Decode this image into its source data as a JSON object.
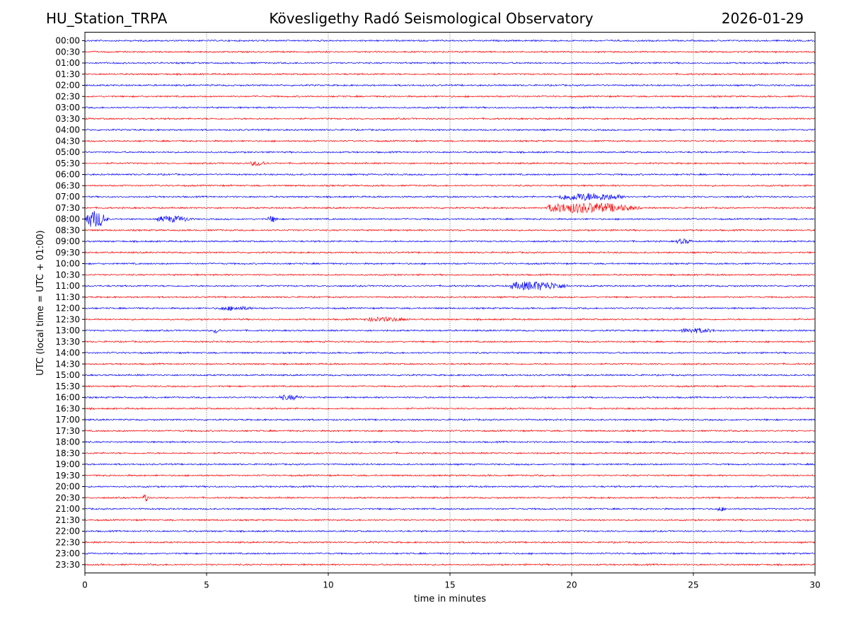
{
  "header": {
    "station": "HU_Station_TRPA",
    "observatory": "Kövesligethy Radó Seismological Observatory",
    "date": "2026-01-29"
  },
  "chart_data": {
    "type": "line",
    "title": "Kövesligethy Radó Seismological Observatory",
    "xlabel": "time in minutes",
    "ylabel": "UTC (local time = UTC + 01:00)",
    "xlim": [
      0,
      30
    ],
    "x_ticks": [
      0,
      5,
      10,
      15,
      20,
      25,
      30
    ],
    "grid": "vertical dotted at 5-minute ticks",
    "series_colors": [
      "#0000ff",
      "#ff0000"
    ],
    "row_labels": [
      "00:00",
      "00:30",
      "01:00",
      "01:30",
      "02:00",
      "02:30",
      "03:00",
      "03:30",
      "04:00",
      "04:30",
      "05:00",
      "05:30",
      "06:00",
      "06:30",
      "07:00",
      "07:30",
      "08:00",
      "08:30",
      "09:00",
      "09:30",
      "10:00",
      "10:30",
      "11:00",
      "11:30",
      "12:00",
      "12:30",
      "13:00",
      "13:30",
      "14:00",
      "14:30",
      "15:00",
      "15:30",
      "16:00",
      "16:30",
      "17:00",
      "17:30",
      "18:00",
      "18:30",
      "19:00",
      "19:30",
      "20:00",
      "20:30",
      "21:00",
      "21:30",
      "22:00",
      "22:30",
      "23:00",
      "23:30"
    ],
    "events": [
      {
        "row": "07:00",
        "start_min": 19.5,
        "end_min": 22.5,
        "amplitude": 5
      },
      {
        "row": "07:30",
        "start_min": 19.0,
        "end_min": 23.0,
        "amplitude": 7
      },
      {
        "row": "08:00",
        "start_min": 0.0,
        "end_min": 1.0,
        "amplitude": 12
      },
      {
        "row": "08:00",
        "start_min": 3.0,
        "end_min": 4.5,
        "amplitude": 4
      },
      {
        "row": "08:00",
        "start_min": 7.5,
        "end_min": 8.0,
        "amplitude": 4
      },
      {
        "row": "11:00",
        "start_min": 17.5,
        "end_min": 20.0,
        "amplitude": 6
      },
      {
        "row": "05:30",
        "start_min": 6.8,
        "end_min": 7.6,
        "amplitude": 3
      },
      {
        "row": "12:00",
        "start_min": 5.5,
        "end_min": 7.0,
        "amplitude": 2.5
      },
      {
        "row": "12:30",
        "start_min": 11.5,
        "end_min": 13.5,
        "amplitude": 2.5
      },
      {
        "row": "13:00",
        "start_min": 5.3,
        "end_min": 5.6,
        "amplitude": 4
      },
      {
        "row": "13:00",
        "start_min": 24.5,
        "end_min": 26.0,
        "amplitude": 3
      },
      {
        "row": "09:00",
        "start_min": 24.3,
        "end_min": 25.0,
        "amplitude": 3
      },
      {
        "row": "16:00",
        "start_min": 8.0,
        "end_min": 9.0,
        "amplitude": 3
      },
      {
        "row": "20:30",
        "start_min": 2.4,
        "end_min": 2.6,
        "amplitude": 6
      },
      {
        "row": "21:00",
        "start_min": 26.0,
        "end_min": 26.3,
        "amplitude": 3
      }
    ]
  }
}
